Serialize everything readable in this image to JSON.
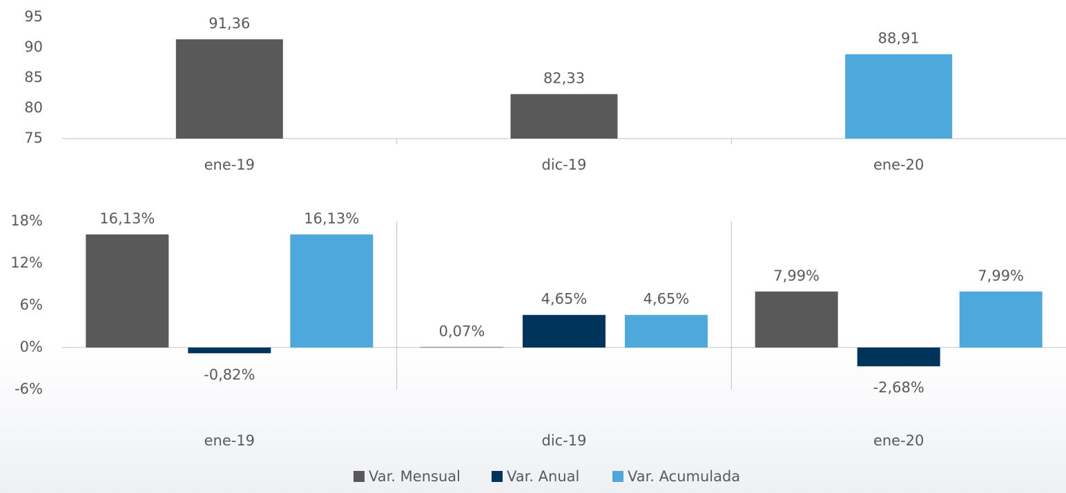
{
  "chart_data": [
    {
      "type": "bar",
      "categories": [
        "ene-19",
        "dic-19",
        "ene-20"
      ],
      "values": [
        91.36,
        82.33,
        88.91
      ],
      "value_labels": [
        "91,36",
        "82,33",
        "88,91"
      ],
      "colors": [
        "#595959",
        "#595959",
        "#4fa8dc"
      ],
      "ylim": [
        75,
        95
      ],
      "yticks": [
        75,
        80,
        85,
        90,
        95
      ]
    },
    {
      "type": "grouped_bar",
      "categories": [
        "ene-19",
        "dic-19",
        "ene-20"
      ],
      "series": [
        {
          "name": "Var. Mensual",
          "color": "#595959",
          "values": [
            16.13,
            0.07,
            7.99
          ],
          "value_labels": [
            "16,13%",
            "0,07%",
            "7,99%"
          ]
        },
        {
          "name": "Var. Anual",
          "color": "#00345b",
          "values": [
            -0.82,
            4.65,
            -2.68
          ],
          "value_labels": [
            "-0,82%",
            "4,65%",
            "-2,68%"
          ]
        },
        {
          "name": "Var. Acumulada",
          "color": "#4fa8dc",
          "values": [
            16.13,
            4.65,
            7.99
          ],
          "value_labels": [
            "16,13%",
            "4,65%",
            "7,99%"
          ]
        }
      ],
      "ylim": [
        -6,
        18
      ],
      "yticks": [
        {
          "value": -6,
          "label": "-6%"
        },
        {
          "value": 0,
          "label": "0%"
        },
        {
          "value": 6,
          "label": "6%"
        },
        {
          "value": 12,
          "label": "12%"
        },
        {
          "value": 18,
          "label": "18%"
        }
      ],
      "legend": "bottom"
    }
  ]
}
